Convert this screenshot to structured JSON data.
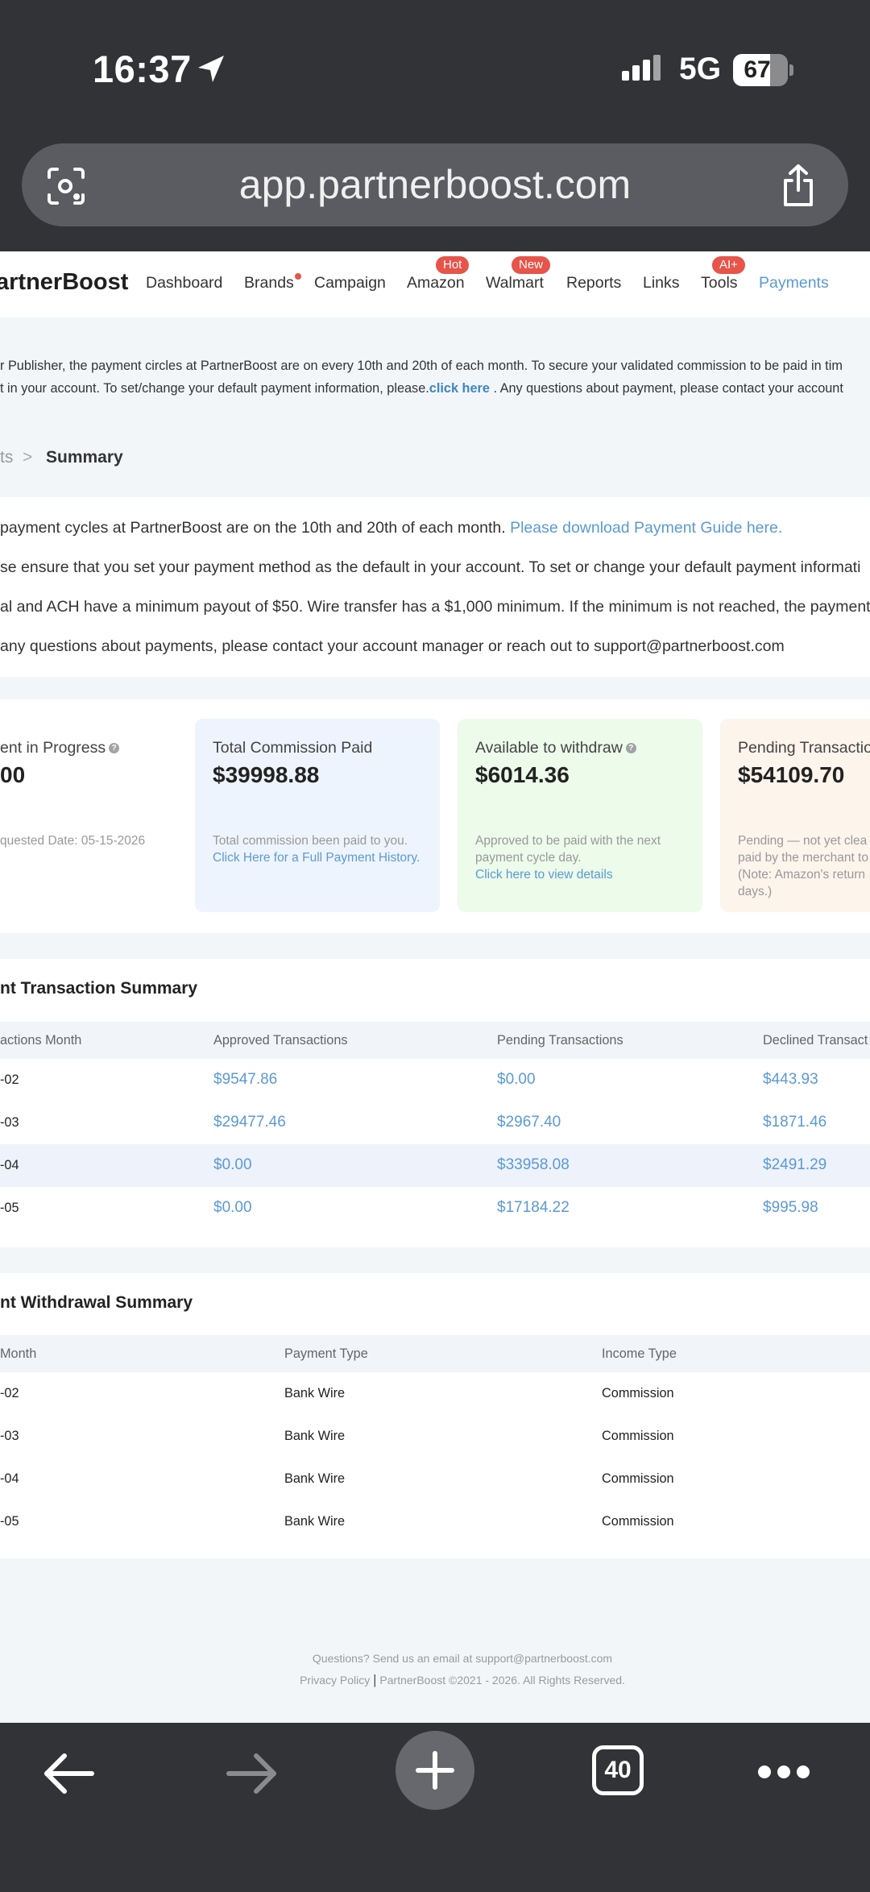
{
  "status_bar": {
    "time": "16:37",
    "network": "5G",
    "battery": "67",
    "battery_level": 0.67
  },
  "browser": {
    "url": "app.partnerboost.com",
    "tab_count": "40"
  },
  "nav": {
    "logo": "artnerBoost",
    "items": [
      "Dashboard",
      "Brands",
      "Campaign",
      "Amazon",
      "Walmart",
      "Reports",
      "Links",
      "Tools",
      "Payments"
    ],
    "badges": {
      "amazon": "Hot",
      "walmart": "New",
      "tools": "AI+"
    }
  },
  "notice": {
    "line1": "r Publisher, the payment circles at PartnerBoost are on every 10th and 20th of each month. To secure your validated commission to be paid in tim",
    "line2_before": "t in your account. To set/change your default payment information, please.",
    "line2_link": "click here",
    "line2_after": " . Any questions about payment, please contact your account"
  },
  "breadcrumb": {
    "parent": "ts",
    "separator": ">",
    "current": "Summary"
  },
  "info": {
    "line1": "payment cycles at PartnerBoost are on the 10th and 20th of each month.",
    "line1_link": "Please download Payment Guide here.",
    "line2": "se ensure that you set your payment method as the default in your account. To set or change your default payment informati",
    "line3": "al and ACH have a minimum payout of $50. Wire transfer has a $1,000 minimum. If the minimum is not reached, the payment",
    "line4": "any questions about payments, please contact your account manager or reach out to support@partnerboost.com"
  },
  "cards": [
    {
      "title": "ent in Progress",
      "value": "00",
      "desc": "quested Date: 05-15-2026"
    },
    {
      "title": "Total Commission Paid",
      "value": "$39998.88",
      "desc": "Total commission been paid to you.",
      "link": "Click Here for a Full Payment History."
    },
    {
      "title": "Available to withdraw",
      "value": "$6014.36",
      "desc1": "Approved to be paid with the next",
      "desc2": "payment cycle day.",
      "link": "Click here to view details"
    },
    {
      "title": "Pending Transactio",
      "value": "$54109.70",
      "desc1": "Pending — not yet clea",
      "desc2": "paid by the merchant to",
      "desc3": "(Note: Amazon's return",
      "desc4": "days.)"
    }
  ],
  "transactions": {
    "title": "nt Transaction Summary",
    "columns": [
      "actions Month",
      "Approved Transactions",
      "Pending Transactions",
      "Declined Transact"
    ],
    "rows": [
      [
        "-02",
        "$9547.86",
        "$0.00",
        "$443.93"
      ],
      [
        "-03",
        "$29477.46",
        "$2967.40",
        "$1871.46"
      ],
      [
        "-04",
        "$0.00",
        "$33958.08",
        "$2491.29"
      ],
      [
        "-05",
        "$0.00",
        "$17184.22",
        "$995.98"
      ]
    ]
  },
  "withdrawals": {
    "title": "nt Withdrawal Summary",
    "columns": [
      "Month",
      "Payment Type",
      "Income Type"
    ],
    "rows": [
      [
        "-02",
        "Bank Wire",
        "Commission"
      ],
      [
        "-03",
        "Bank Wire",
        "Commission"
      ],
      [
        "-04",
        "Bank Wire",
        "Commission"
      ],
      [
        "-05",
        "Bank Wire",
        "Commission"
      ]
    ]
  },
  "footer": {
    "line1": "Questions? Send us an email at support@partnerboost.com",
    "privacy": "Privacy Policy",
    "sep": "|",
    "copyright": "PartnerBoost ©2021 - 2026. All Rights Reserved."
  }
}
